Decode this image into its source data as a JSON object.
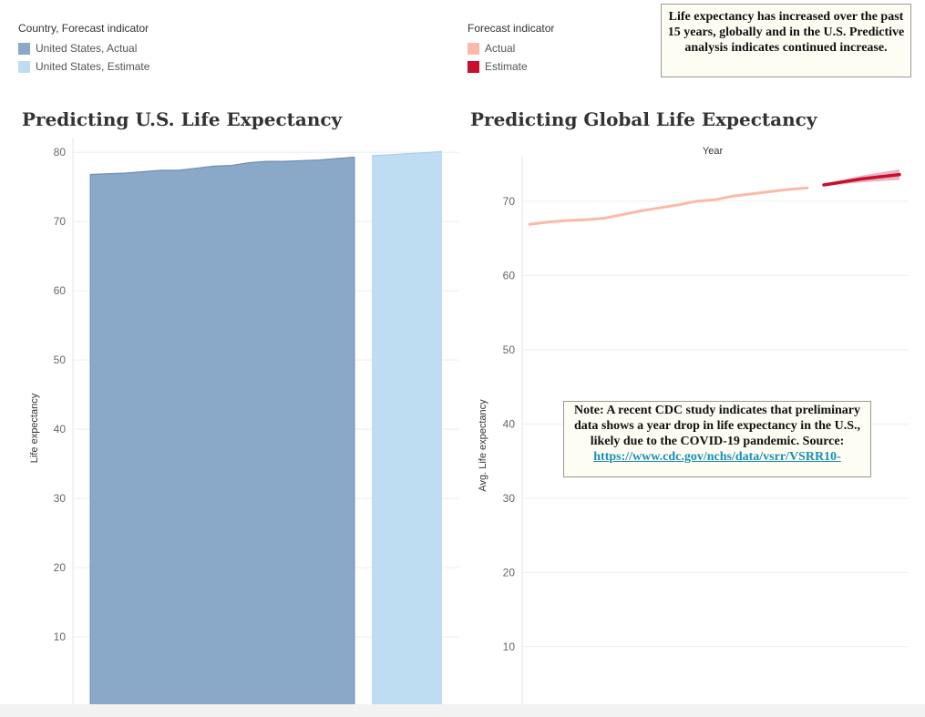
{
  "legends": {
    "us": {
      "title": "Country, Forecast indicator",
      "items": [
        {
          "label": "United States, Actual",
          "color": "#8aa8c8"
        },
        {
          "label": "United States, Estimate",
          "color": "#bfddf2"
        }
      ]
    },
    "global": {
      "title": "Forecast indicator",
      "items": [
        {
          "label": "Actual",
          "color": "#fbbaa8"
        },
        {
          "label": "Estimate",
          "color": "#c8102e"
        }
      ]
    }
  },
  "top_note": "Life expectancy has increased over the past 15 years, globally and in the U.S. Predictive analysis indicates continued increase.",
  "cdc_note": {
    "text": "Note: A recent CDC study indicates that preliminary data shows a year drop in life expectancy in the U.S., likely due to the COVID-19 pandemic. Source:",
    "link": "https://www.cdc.gov/nchs/data/vsrr/VSRR10-"
  },
  "chart_data": [
    {
      "type": "area",
      "title": "Predicting U.S. Life Expectancy",
      "ylabel": "Life expectancy",
      "xlabel": "",
      "ylim": [
        0,
        82
      ],
      "yticks": [
        10,
        20,
        30,
        40,
        50,
        60,
        70,
        80
      ],
      "grid": true,
      "series": [
        {
          "name": "United States, Actual",
          "color": "#8aa8c8",
          "values": [
            76.8,
            76.9,
            77.0,
            77.2,
            77.4,
            77.4,
            77.7,
            78.0,
            78.1,
            78.5,
            78.7,
            78.7,
            78.8,
            78.9,
            79.1,
            79.3
          ]
        },
        {
          "name": "United States, Estimate",
          "color": "#bfddf2",
          "values": [
            79.5,
            79.7,
            79.9,
            80.1
          ]
        }
      ]
    },
    {
      "type": "line",
      "title": "Predicting Global Life Expectancy",
      "xlabel": "Year",
      "ylabel": "Avg. Life expectancy",
      "ylim": [
        2,
        76
      ],
      "yticks": [
        10,
        20,
        30,
        40,
        50,
        60,
        70
      ],
      "grid": true,
      "series": [
        {
          "name": "Actual",
          "color": "#fbbaa8",
          "values": [
            66.9,
            67.2,
            67.4,
            67.5,
            67.7,
            68.2,
            68.7,
            69.1,
            69.5,
            70.0,
            70.2,
            70.7,
            71.0,
            71.3,
            71.6,
            71.8
          ]
        },
        {
          "name": "Estimate",
          "color": "#c8102e",
          "values": [
            72.2,
            72.6,
            73.0,
            73.3,
            73.6
          ]
        }
      ]
    }
  ]
}
